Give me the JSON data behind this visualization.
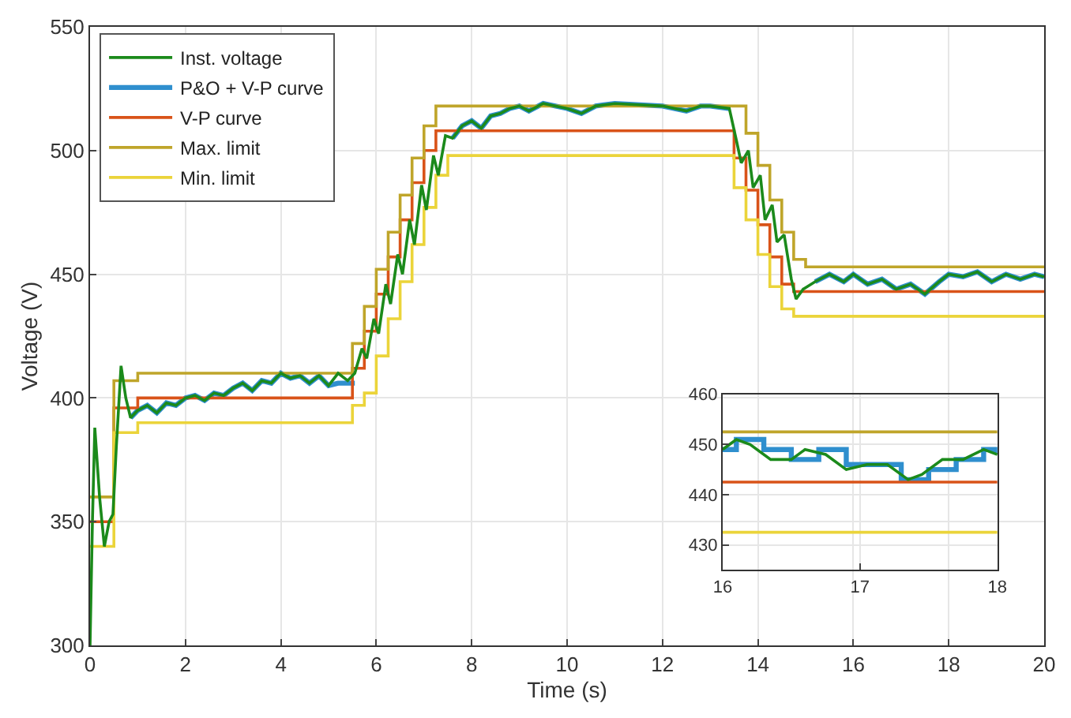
{
  "chart_data": [
    {
      "type": "line",
      "xlabel": "Time (s)",
      "ylabel": "Voltage (V)",
      "xlim": [
        0,
        20
      ],
      "ylim": [
        300,
        550
      ],
      "xticks": [
        0,
        2,
        4,
        6,
        8,
        10,
        12,
        14,
        16,
        18,
        20
      ],
      "yticks": [
        300,
        350,
        400,
        450,
        500,
        550
      ],
      "grid": true,
      "legend": "top left",
      "line_style": "solid",
      "series": [
        {
          "name": "Inst. voltage",
          "color": "#1b8a1b",
          "type": "line",
          "x": [
            0,
            0.05,
            0.1,
            0.2,
            0.3,
            0.4,
            0.48,
            0.55,
            0.65,
            0.75,
            0.85,
            1.0,
            1.2,
            1.4,
            1.6,
            1.8,
            2.0,
            2.2,
            2.4,
            2.6,
            2.8,
            3.0,
            3.2,
            3.4,
            3.6,
            3.8,
            4.0,
            4.2,
            4.4,
            4.6,
            4.8,
            5.0,
            5.2,
            5.4,
            5.55,
            5.7,
            5.8,
            5.95,
            6.05,
            6.2,
            6.3,
            6.45,
            6.55,
            6.7,
            6.8,
            6.95,
            7.05,
            7.2,
            7.3,
            7.45,
            7.6,
            7.8,
            8.0,
            8.2,
            8.4,
            8.6,
            8.8,
            9.0,
            9.2,
            9.5,
            10.0,
            10.3,
            10.6,
            11.0,
            12.0,
            12.5,
            12.8,
            13.0,
            13.4,
            13.55,
            13.65,
            13.8,
            13.9,
            14.05,
            14.15,
            14.3,
            14.4,
            14.55,
            14.7,
            14.8,
            14.95,
            15.2,
            15.5,
            15.8,
            16.0,
            16.3,
            16.6,
            16.9,
            17.2,
            17.5,
            17.8,
            18.0,
            18.3,
            18.6,
            18.9,
            19.2,
            19.5,
            19.8,
            20
          ],
          "values": [
            300,
            350,
            388,
            360,
            340,
            350,
            353,
            380,
            413,
            400,
            392,
            395,
            397,
            394,
            398,
            397,
            400,
            401,
            399,
            402,
            401,
            404,
            406,
            403,
            407,
            406,
            410,
            408,
            409,
            406,
            409,
            405,
            410,
            407,
            410,
            420,
            416,
            432,
            426,
            446,
            438,
            458,
            450,
            472,
            462,
            486,
            476,
            498,
            490,
            506,
            505,
            510,
            512,
            509,
            514,
            515,
            517,
            518,
            516,
            519,
            517,
            515,
            518,
            519,
            518,
            516,
            518,
            518,
            517,
            504,
            495,
            500,
            485,
            490,
            472,
            478,
            463,
            466,
            448,
            440,
            444,
            447,
            450,
            447,
            450,
            446,
            448,
            444,
            446,
            442,
            447,
            450,
            449,
            451,
            447,
            450,
            448,
            450,
            449
          ]
        },
        {
          "name": "P&O + V-P curve",
          "color": "#2f8fce",
          "type": "line",
          "x": [
            0.85,
            1.0,
            1.2,
            1.4,
            1.6,
            1.8,
            2.0,
            2.2,
            2.4,
            2.6,
            2.8,
            3.0,
            3.2,
            3.4,
            3.6,
            3.8,
            4.0,
            4.2,
            4.4,
            4.6,
            4.8,
            5.0,
            5.2,
            5.4,
            5.55,
            6.5,
            7.6,
            7.8,
            8.0,
            8.2,
            8.4,
            8.6,
            8.8,
            9.0,
            9.2,
            9.5,
            10.0,
            10.3,
            10.6,
            11.0,
            12.0,
            12.5,
            12.8,
            13.0,
            13.4,
            14.3,
            15.2,
            15.5,
            15.8,
            16.0,
            16.3,
            16.6,
            16.9,
            17.2,
            17.5,
            17.8,
            18.0,
            18.3,
            18.6,
            18.9,
            19.2,
            19.5,
            19.8,
            20
          ],
          "values": [
            392,
            395,
            397,
            394,
            398,
            397,
            400,
            401,
            399,
            402,
            401,
            404,
            406,
            403,
            407,
            406,
            410,
            408,
            409,
            406,
            409,
            405,
            406,
            406,
            406,
            null,
            505,
            510,
            512,
            509,
            514,
            515,
            517,
            518,
            516,
            519,
            517,
            515,
            518,
            519,
            518,
            516,
            518,
            518,
            517,
            null,
            447,
            450,
            447,
            450,
            446,
            448,
            444,
            446,
            442,
            447,
            450,
            449,
            451,
            447,
            450,
            448,
            450,
            449
          ]
        },
        {
          "name": "V-P curve",
          "color": "#d95319",
          "type": "step",
          "x": [
            0,
            0.5,
            1.0,
            5.5,
            5.75,
            6.0,
            6.25,
            6.5,
            6.75,
            7.0,
            7.25,
            13.5,
            13.75,
            14.0,
            14.25,
            14.5,
            14.75,
            20
          ],
          "values": [
            350,
            396,
            400,
            412,
            427,
            442,
            457,
            472,
            487,
            500,
            508,
            497,
            484,
            470,
            457,
            446,
            443,
            443
          ]
        },
        {
          "name": "Max. limit",
          "color": "#bfa52a",
          "type": "step",
          "x": [
            0,
            0.5,
            1.0,
            5.5,
            5.75,
            6.0,
            6.25,
            6.5,
            6.75,
            7.0,
            7.25,
            13.75,
            14.0,
            14.25,
            14.5,
            14.75,
            15.0,
            20
          ],
          "values": [
            360,
            407,
            410,
            422,
            437,
            452,
            467,
            482,
            497,
            510,
            518,
            507,
            494,
            480,
            467,
            456,
            453,
            453
          ]
        },
        {
          "name": "Min. limit",
          "color": "#ebd43a",
          "type": "step",
          "x": [
            0,
            0.5,
            1.0,
            5.5,
            5.75,
            6.0,
            6.25,
            6.5,
            6.75,
            7.0,
            7.25,
            7.5,
            13.5,
            13.75,
            14.0,
            14.25,
            14.5,
            14.75,
            20
          ],
          "values": [
            340,
            386,
            390,
            397,
            402,
            417,
            432,
            447,
            462,
            477,
            490,
            498,
            485,
            472,
            458,
            445,
            436,
            433,
            433
          ]
        }
      ]
    },
    {
      "type": "line",
      "xlim": [
        16,
        18
      ],
      "ylim": [
        425,
        460
      ],
      "xticks": [
        16,
        17,
        18
      ],
      "yticks": [
        430,
        440,
        450,
        460
      ],
      "grid": true,
      "line_style": "solid",
      "series": [
        {
          "color": "#1b8a1b",
          "type": "line",
          "x": [
            16,
            16.1,
            16.2,
            16.35,
            16.5,
            16.6,
            16.75,
            16.9,
            17.05,
            17.2,
            17.35,
            17.45,
            17.6,
            17.75,
            17.9,
            18
          ],
          "values": [
            449,
            451,
            450,
            447,
            447,
            449,
            448,
            445,
            446,
            446,
            443,
            444,
            447,
            447,
            449,
            448
          ]
        },
        {
          "color": "#2f8fce",
          "type": "step",
          "x": [
            16,
            16.1,
            16.3,
            16.5,
            16.7,
            16.9,
            17.1,
            17.3,
            17.5,
            17.7,
            17.9,
            18
          ],
          "values": [
            449,
            451,
            449,
            447,
            449,
            446,
            446,
            443,
            445,
            447,
            449,
            448
          ]
        },
        {
          "color": "#d95319",
          "type": "line",
          "x": [
            16,
            18
          ],
          "values": [
            442.5,
            442.5
          ]
        },
        {
          "color": "#bfa52a",
          "type": "line",
          "x": [
            16,
            18
          ],
          "values": [
            452.5,
            452.5
          ]
        },
        {
          "color": "#ebd43a",
          "type": "line",
          "x": [
            16,
            18
          ],
          "values": [
            432.5,
            432.5
          ]
        }
      ]
    }
  ]
}
